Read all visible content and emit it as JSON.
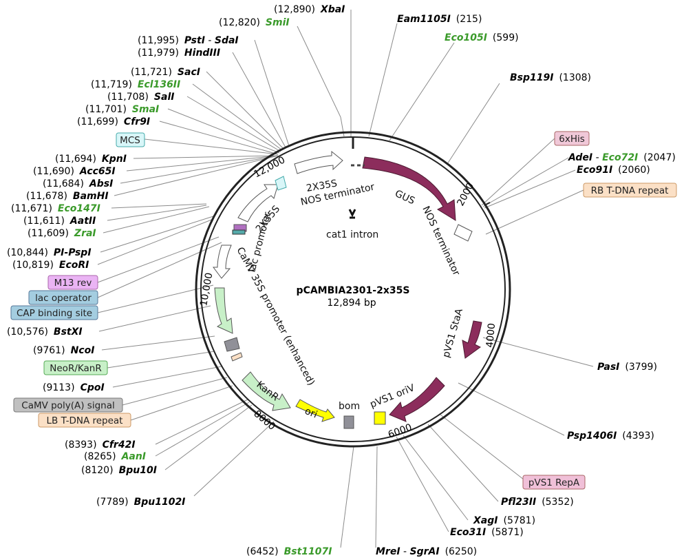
{
  "plasmid": {
    "name": "pCAMBIA2301-2x35S",
    "size": "12,894 bp"
  },
  "colors": {
    "promoter": "#ffffff",
    "gene": "#8c2d5c",
    "kanr": "#c8f0c8",
    "ori": "#ffff00",
    "misc": "#909098",
    "mcs_box": "#d9f6f8",
    "his_box": "#f0c8d8",
    "rb_box": "#fbe0c6",
    "m13_box": "#eab4f4",
    "lacop_box": "#a4cde0",
    "cap_box": "#a4cde0",
    "neo_box": "#c8f0c8",
    "polya_box": "#c0c0c0",
    "repa_box": "#f0c0d8",
    "green_enzyme": "#3a9a2a"
  },
  "ticks": [
    "2000",
    "4000",
    "6000",
    "8000",
    "10,000",
    "12,000"
  ],
  "features": {
    "gus": "GUS",
    "nos_term_top": "NOS terminator",
    "two_x35s_a": "2X35S",
    "two_x35s_b": "2X35S",
    "cat1": "cat1 intron",
    "nos_term_right": "NOS terminator",
    "lac_promoter": "lac promoter",
    "camv35s": "CaMV 35S promoter (enhanced)",
    "pvs1_staa": "pVS1 StaA",
    "pvs1_oriv": "pVS1 oriV",
    "bom": "bom",
    "ori": "ori",
    "kanr": "KanR"
  },
  "boxes": {
    "mcs": "MCS",
    "his": "6xHis",
    "rb": "RB T-DNA repeat",
    "m13": "M13 rev",
    "lacop": "lac operator",
    "cap": "CAP binding site",
    "neo": "NeoR/KanR",
    "polya": "CaMV poly(A) signal",
    "lb": "LB T-DNA repeat",
    "repa": "pVS1 RepA"
  },
  "sites": {
    "xba": {
      "pos": "(12,890)",
      "name": "XbaI"
    },
    "smi": {
      "pos": "(12,820)",
      "name": "SmiI"
    },
    "pst": {
      "pos": "(11,995)",
      "name": "PstI",
      "sep": " - ",
      "name2": "SdaI"
    },
    "hind": {
      "pos": "(11,979)",
      "name": "HindIII"
    },
    "sac": {
      "pos": "(11,721)",
      "name": "SacI"
    },
    "ecl": {
      "pos": "(11,719)",
      "name": "Ecl136II"
    },
    "sal": {
      "pos": "(11,708)",
      "name": "SalI"
    },
    "sma": {
      "pos": "(11,701)",
      "name": "SmaI"
    },
    "cfr9": {
      "pos": "(11,699)",
      "name": "Cfr9I"
    },
    "kpn": {
      "pos": "(11,694)",
      "name": "KpnI"
    },
    "acc65": {
      "pos": "(11,690)",
      "name": "Acc65I"
    },
    "abs": {
      "pos": "(11,684)",
      "name": "AbsI"
    },
    "bamhi": {
      "pos": "(11,678)",
      "name": "BamHI"
    },
    "eco147": {
      "pos": "(11,671)",
      "name": "Eco147I"
    },
    "aat": {
      "pos": "(11,611)",
      "name": "AatII"
    },
    "zra": {
      "pos": "(11,609)",
      "name": "ZraI"
    },
    "pipsp": {
      "pos": "(10,844)",
      "name": "PI-PspI"
    },
    "ecori": {
      "pos": "(10,819)",
      "name": "EcoRI"
    },
    "bstx": {
      "pos": "(10,576)",
      "name": "BstXI"
    },
    "nco": {
      "pos": "(9761)",
      "name": "NcoI"
    },
    "cpo": {
      "pos": "(9113)",
      "name": "CpoI"
    },
    "cfr42": {
      "pos": "(8393)",
      "name": "Cfr42I"
    },
    "aan": {
      "pos": "(8265)",
      "name": "AanI"
    },
    "bpu10": {
      "pos": "(8120)",
      "name": "Bpu10I"
    },
    "bpu1102": {
      "pos": "(7789)",
      "name": "Bpu1102I"
    },
    "bst1107": {
      "pos": "(6452)",
      "name": "Bst1107I"
    },
    "mre": {
      "name": "MreI",
      "sep": " - ",
      "name2": "SgrAI",
      "pos": "(6250)"
    },
    "eam": {
      "name": "Eam1105I",
      "pos": "(215)"
    },
    "eco105": {
      "name": "Eco105I",
      "pos": "(599)"
    },
    "bsp119": {
      "name": "Bsp119I",
      "pos": "(1308)"
    },
    "ade": {
      "name": "AdeI",
      "sep": " - ",
      "name2": "Eco72I",
      "pos": "(2047)"
    },
    "eco91": {
      "name": "Eco91I",
      "pos": "(2060)"
    },
    "pas": {
      "name": "PasI",
      "pos": "(3799)"
    },
    "psp1406": {
      "name": "Psp1406I",
      "pos": "(4393)"
    },
    "pfl23": {
      "name": "Pfl23II",
      "pos": "(5352)"
    },
    "xag": {
      "name": "XagI",
      "pos": "(5781)"
    },
    "eco31": {
      "name": "Eco31I",
      "pos": "(5871)"
    }
  }
}
